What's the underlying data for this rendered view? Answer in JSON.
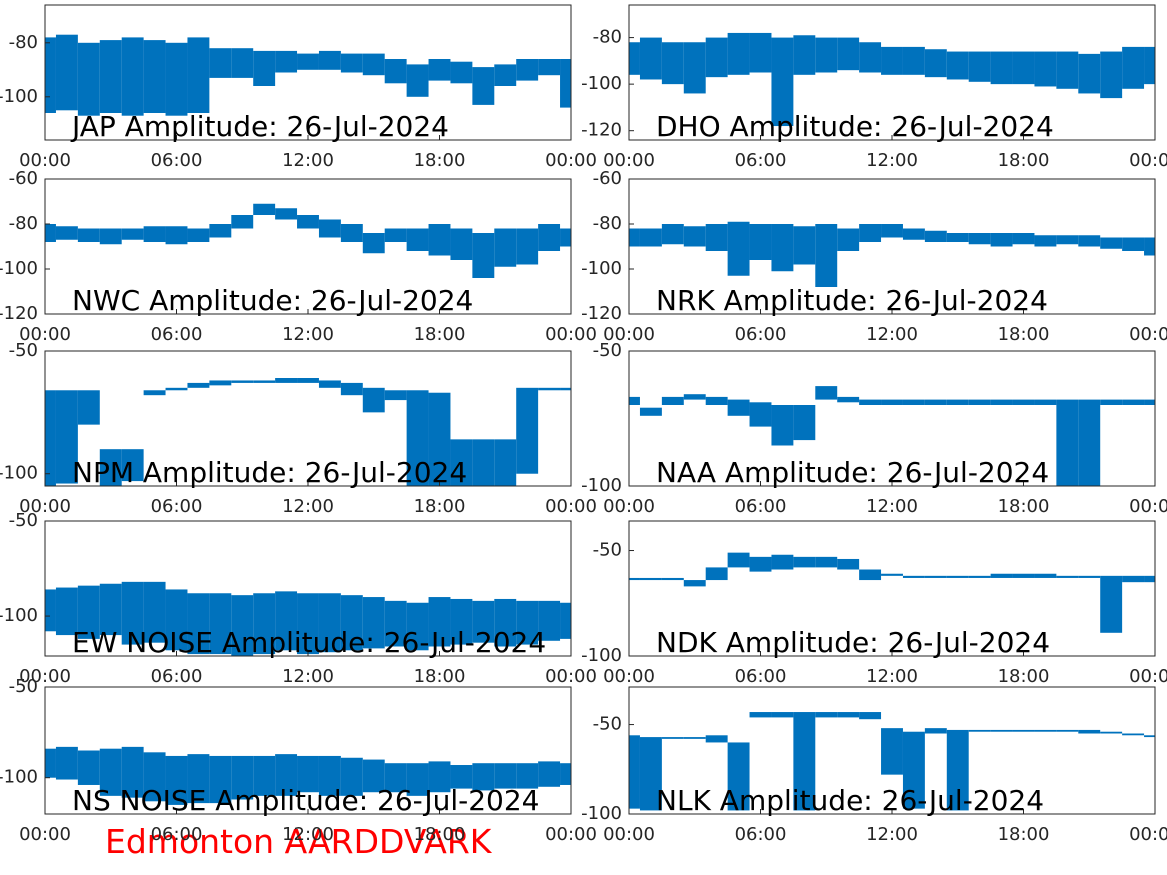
{
  "chart_data": [
    {
      "type": "range",
      "title": "JAP Amplitude: 26-Jul-2024",
      "color": "#0072bd",
      "x": [
        0,
        1,
        2,
        3,
        4,
        5,
        6,
        7,
        8,
        9,
        10,
        11,
        12,
        13,
        14,
        15,
        16,
        17,
        18,
        19,
        20,
        21,
        22,
        23,
        24
      ],
      "low": [
        -106,
        -105,
        -107,
        -106,
        -107,
        -106,
        -107,
        -106,
        -93,
        -93,
        -96,
        -91,
        -90,
        -90,
        -91,
        -92,
        -95,
        -100,
        -94,
        -95,
        -103,
        -96,
        -94,
        -92,
        -104
      ],
      "high": [
        -78,
        -77,
        -80,
        -79,
        -78,
        -79,
        -80,
        -78,
        -82,
        -82,
        -83,
        -83,
        -84,
        -83,
        -84,
        -84,
        -86,
        -88,
        -86,
        -87,
        -89,
        -88,
        -86,
        -86,
        -86
      ],
      "xlim": [
        0,
        24
      ],
      "xticks": [
        {
          "value": 0,
          "label": "00:00"
        },
        {
          "value": 6,
          "label": "06:00"
        },
        {
          "value": 12,
          "label": "12:00"
        },
        {
          "value": 18,
          "label": "18:00"
        },
        {
          "value": 24,
          "label": "00:00"
        }
      ],
      "ylim": [
        -116,
        -66
      ],
      "yticks": [
        -100,
        -80
      ]
    },
    {
      "type": "range",
      "title": "DHO Amplitude: 26-Jul-2024",
      "color": "#0072bd",
      "x": [
        0,
        1,
        2,
        3,
        4,
        5,
        6,
        7,
        8,
        9,
        10,
        11,
        12,
        13,
        14,
        15,
        16,
        17,
        18,
        19,
        20,
        21,
        22,
        23,
        24
      ],
      "low": [
        -96,
        -98,
        -100,
        -104,
        -97,
        -96,
        -95,
        -118,
        -96,
        -95,
        -94,
        -95,
        -96,
        -96,
        -97,
        -98,
        -99,
        -100,
        -100,
        -101,
        -102,
        -104,
        -106,
        -102,
        -100
      ],
      "high": [
        -82,
        -80,
        -82,
        -82,
        -80,
        -78,
        -78,
        -80,
        -79,
        -80,
        -80,
        -82,
        -84,
        -84,
        -85,
        -86,
        -86,
        -86,
        -86,
        -86,
        -86,
        -87,
        -86,
        -84,
        -84
      ],
      "xlim": [
        0,
        24
      ],
      "xticks": [
        {
          "value": 0,
          "label": "00:00"
        },
        {
          "value": 6,
          "label": "06:00"
        },
        {
          "value": 12,
          "label": "12:00"
        },
        {
          "value": 18,
          "label": "18:00"
        },
        {
          "value": 24,
          "label": "00:00"
        }
      ],
      "ylim": [
        -124,
        -66
      ],
      "yticks": [
        -120,
        -100,
        -80
      ]
    },
    {
      "type": "range",
      "title": "NWC Amplitude: 26-Jul-2024",
      "color": "#0072bd",
      "x": [
        0,
        1,
        2,
        3,
        4,
        5,
        6,
        7,
        8,
        9,
        10,
        11,
        12,
        13,
        14,
        15,
        16,
        17,
        18,
        19,
        20,
        21,
        22,
        23,
        24
      ],
      "low": [
        -88,
        -87,
        -88,
        -89,
        -87,
        -88,
        -89,
        -88,
        -86,
        -82,
        -76,
        -78,
        -82,
        -86,
        -88,
        -93,
        -88,
        -92,
        -94,
        -96,
        -104,
        -99,
        -98,
        -92,
        -90
      ],
      "high": [
        -80,
        -81,
        -82,
        -82,
        -82,
        -81,
        -81,
        -82,
        -80,
        -76,
        -71,
        -73,
        -76,
        -78,
        -80,
        -84,
        -82,
        -82,
        -80,
        -82,
        -84,
        -82,
        -82,
        -80,
        -82
      ],
      "xlim": [
        0,
        24
      ],
      "xticks": [
        {
          "value": 0,
          "label": "00:00"
        },
        {
          "value": 6,
          "label": "06:00"
        },
        {
          "value": 12,
          "label": "12:00"
        },
        {
          "value": 18,
          "label": "18:00"
        },
        {
          "value": 24,
          "label": "00:00"
        }
      ],
      "ylim": [
        -120,
        -60
      ],
      "yticks": [
        -120,
        -100,
        -80,
        -60
      ]
    },
    {
      "type": "range",
      "title": "NRK Amplitude: 26-Jul-2024",
      "color": "#0072bd",
      "x": [
        0,
        1,
        2,
        3,
        4,
        5,
        6,
        7,
        8,
        9,
        10,
        11,
        12,
        13,
        14,
        15,
        16,
        17,
        18,
        19,
        20,
        21,
        22,
        23,
        24
      ],
      "low": [
        -90,
        -90,
        -89,
        -90,
        -92,
        -103,
        -96,
        -101,
        -98,
        -108,
        -92,
        -88,
        -86,
        -87,
        -88,
        -88,
        -89,
        -90,
        -89,
        -90,
        -89,
        -90,
        -91,
        -92,
        -94
      ],
      "high": [
        -82,
        -82,
        -80,
        -81,
        -80,
        -79,
        -80,
        -80,
        -81,
        -80,
        -82,
        -80,
        -80,
        -82,
        -83,
        -84,
        -84,
        -84,
        -84,
        -85,
        -85,
        -85,
        -86,
        -86,
        -86
      ],
      "xlim": [
        0,
        24
      ],
      "xticks": [
        {
          "value": 0,
          "label": "00:00"
        },
        {
          "value": 6,
          "label": "06:00"
        },
        {
          "value": 12,
          "label": "12:00"
        },
        {
          "value": 18,
          "label": "18:00"
        },
        {
          "value": 24,
          "label": "00:00"
        }
      ],
      "ylim": [
        -120,
        -60
      ],
      "yticks": [
        -120,
        -100,
        -80,
        -60
      ]
    },
    {
      "type": "range",
      "title": "NPM Amplitude: 26-Jul-2024",
      "color": "#0072bd",
      "x": [
        0,
        1,
        2,
        3,
        4,
        5,
        6,
        7,
        8,
        9,
        10,
        11,
        12,
        13,
        14,
        15,
        16,
        17,
        18,
        19,
        20,
        21,
        22,
        23,
        24
      ],
      "low": [
        -105,
        -104,
        -80,
        -105,
        -103,
        -68,
        -66,
        -65,
        -64,
        -63,
        -63,
        -63,
        -63,
        -65,
        -68,
        -75,
        -70,
        -105,
        -105,
        -105,
        -105,
        -105,
        -100,
        -66,
        -66
      ],
      "high": [
        -66,
        -66,
        -66,
        -90,
        -90,
        -66,
        -65,
        -63,
        -62,
        -62,
        -62,
        -61,
        -61,
        -62,
        -63,
        -65,
        -66,
        -66,
        -67,
        -86,
        -86,
        -86,
        -65,
        -65,
        -65
      ],
      "xlim": [
        0,
        24
      ],
      "xticks": [
        {
          "value": 0,
          "label": "00:00"
        },
        {
          "value": 6,
          "label": "06:00"
        },
        {
          "value": 12,
          "label": "12:00"
        },
        {
          "value": 18,
          "label": "18:00"
        },
        {
          "value": 24,
          "label": "00:00"
        }
      ],
      "ylim": [
        -105,
        -50
      ],
      "yticks": [
        -100,
        -50
      ]
    },
    {
      "type": "range",
      "title": "NAA Amplitude: 26-Jul-2024",
      "color": "#0072bd",
      "x": [
        0,
        1,
        2,
        3,
        4,
        5,
        6,
        7,
        8,
        9,
        10,
        11,
        12,
        13,
        14,
        15,
        16,
        17,
        18,
        19,
        20,
        21,
        22,
        23,
        24
      ],
      "low": [
        -70,
        -74,
        -70,
        -68,
        -70,
        -74,
        -78,
        -85,
        -83,
        -68,
        -69,
        -70,
        -70,
        -70,
        -70,
        -70,
        -70,
        -70,
        -70,
        -70,
        -100,
        -100,
        -70,
        -70,
        -70
      ],
      "high": [
        -67,
        -71,
        -67,
        -66,
        -67,
        -68,
        -69,
        -70,
        -70,
        -63,
        -67,
        -68,
        -68,
        -68,
        -68,
        -68,
        -68,
        -68,
        -68,
        -68,
        -68,
        -68,
        -68,
        -68,
        -68
      ],
      "xlim": [
        0,
        24
      ],
      "xticks": [
        {
          "value": 0,
          "label": "00:00"
        },
        {
          "value": 6,
          "label": "06:00"
        },
        {
          "value": 12,
          "label": "12:00"
        },
        {
          "value": 18,
          "label": "18:00"
        },
        {
          "value": 24,
          "label": "00:00"
        }
      ],
      "ylim": [
        -100,
        -50
      ],
      "yticks": [
        -100,
        -50
      ]
    },
    {
      "type": "range",
      "title": "EW NOISE Amplitude: 26-Jul-2024",
      "color": "#0072bd",
      "x": [
        0,
        1,
        2,
        3,
        4,
        5,
        6,
        7,
        8,
        9,
        10,
        11,
        12,
        13,
        14,
        15,
        16,
        17,
        18,
        19,
        20,
        21,
        22,
        23,
        24
      ],
      "low": [
        -108,
        -110,
        -112,
        -110,
        -115,
        -114,
        -118,
        -120,
        -120,
        -121,
        -120,
        -118,
        -120,
        -119,
        -118,
        -117,
        -116,
        -118,
        -116,
        -115,
        -114,
        -116,
        -115,
        -113,
        -112
      ],
      "high": [
        -86,
        -85,
        -84,
        -83,
        -82,
        -82,
        -86,
        -88,
        -88,
        -89,
        -88,
        -87,
        -88,
        -88,
        -89,
        -90,
        -92,
        -93,
        -90,
        -91,
        -92,
        -91,
        -92,
        -92,
        -93
      ],
      "xlim": [
        0,
        24
      ],
      "xticks": [
        {
          "value": 0,
          "label": "00:00"
        },
        {
          "value": 6,
          "label": "06:00"
        },
        {
          "value": 12,
          "label": "12:00"
        },
        {
          "value": 18,
          "label": "18:00"
        },
        {
          "value": 24,
          "label": "00:00"
        }
      ],
      "ylim": [
        -121,
        -50
      ],
      "yticks": [
        -100,
        -50
      ]
    },
    {
      "type": "range",
      "title": "NDK Amplitude: 26-Jul-2024",
      "color": "#0072bd",
      "x": [
        0,
        1,
        2,
        3,
        4,
        5,
        6,
        7,
        8,
        9,
        10,
        11,
        12,
        13,
        14,
        15,
        16,
        17,
        18,
        19,
        20,
        21,
        22,
        23,
        24
      ],
      "low": [
        -64,
        -64,
        -64,
        -67,
        -64,
        -58,
        -60,
        -59,
        -58,
        -58,
        -59,
        -64,
        -62,
        -63,
        -63,
        -63,
        -63,
        -63,
        -63,
        -63,
        -63,
        -63,
        -89,
        -65,
        -65
      ],
      "high": [
        -63,
        -63,
        -63,
        -64,
        -58,
        -51,
        -53,
        -52,
        -53,
        -53,
        -54,
        -59,
        -61,
        -62,
        -62,
        -62,
        -62,
        -61,
        -61,
        -61,
        -62,
        -62,
        -62,
        -62,
        -62
      ],
      "xlim": [
        0,
        24
      ],
      "xticks": [
        {
          "value": 0,
          "label": "00:00"
        },
        {
          "value": 6,
          "label": "06:00"
        },
        {
          "value": 12,
          "label": "12:00"
        },
        {
          "value": 18,
          "label": "18:00"
        },
        {
          "value": 24,
          "label": "00:00"
        }
      ],
      "ylim": [
        -100,
        -36
      ],
      "yticks": [
        -100,
        -50
      ]
    },
    {
      "type": "range",
      "title": "NS NOISE Amplitude: 26-Jul-2024",
      "color": "#0072bd",
      "x": [
        0,
        1,
        2,
        3,
        4,
        5,
        6,
        7,
        8,
        9,
        10,
        11,
        12,
        13,
        14,
        15,
        16,
        17,
        18,
        19,
        20,
        21,
        22,
        23,
        24
      ],
      "low": [
        -100,
        -101,
        -104,
        -110,
        -111,
        -113,
        -115,
        -114,
        -114,
        -112,
        -110,
        -110,
        -108,
        -110,
        -110,
        -108,
        -108,
        -110,
        -108,
        -106,
        -107,
        -106,
        -106,
        -105,
        -104
      ],
      "high": [
        -84,
        -83,
        -85,
        -84,
        -83,
        -86,
        -88,
        -87,
        -88,
        -88,
        -88,
        -87,
        -88,
        -88,
        -89,
        -90,
        -92,
        -92,
        -91,
        -93,
        -92,
        -92,
        -92,
        -91,
        -92
      ],
      "xlim": [
        0,
        24
      ],
      "xticks": [
        {
          "value": 0,
          "label": "00:00"
        },
        {
          "value": 6,
          "label": "06:00"
        },
        {
          "value": 12,
          "label": "12:00"
        },
        {
          "value": 18,
          "label": "18:00"
        },
        {
          "value": 24,
          "label": "00:00"
        }
      ],
      "ylim": [
        -120,
        -50
      ],
      "yticks": [
        -100,
        -50
      ]
    },
    {
      "type": "range",
      "title": "NLK Amplitude: 26-Jul-2024",
      "color": "#0072bd",
      "x": [
        0,
        1,
        2,
        3,
        4,
        5,
        6,
        7,
        8,
        9,
        10,
        11,
        12,
        13,
        14,
        15,
        16,
        17,
        18,
        19,
        20,
        21,
        22,
        23,
        24
      ],
      "low": [
        -97,
        -98,
        -58,
        -58,
        -60,
        -98,
        -46,
        -46,
        -98,
        -46,
        -46,
        -47,
        -78,
        -97,
        -55,
        -98,
        -54,
        -54,
        -54,
        -54,
        -54,
        -55,
        -55,
        -56,
        -57
      ],
      "high": [
        -56,
        -57,
        -57,
        -57,
        -56,
        -60,
        -43,
        -43,
        -43,
        -43,
        -43,
        -43,
        -52,
        -54,
        -52,
        -53,
        -53,
        -53,
        -53,
        -53,
        -53,
        -53,
        -54,
        -55,
        -56
      ],
      "xlim": [
        0,
        24
      ],
      "xticks": [
        {
          "value": 0,
          "label": "00:00"
        },
        {
          "value": 6,
          "label": "06:00"
        },
        {
          "value": 12,
          "label": "12:00"
        },
        {
          "value": 18,
          "label": "18:00"
        },
        {
          "value": 24,
          "label": "00:00"
        }
      ],
      "ylim": [
        -100,
        -29
      ],
      "yticks": [
        -100,
        -50
      ]
    }
  ],
  "footer": "Edmonton AARDDVARK"
}
